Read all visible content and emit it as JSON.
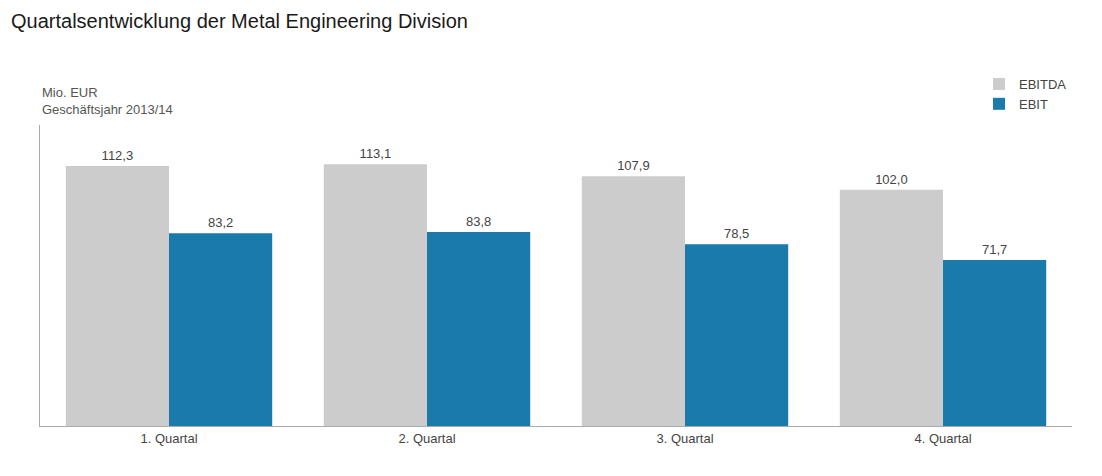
{
  "chart_data": {
    "type": "bar",
    "title": "Quartalsentwicklung der Metal Engineering Division",
    "subtitle": [
      "Mio. EUR",
      "Geschäftsjahr 2013/14"
    ],
    "categories": [
      "1. Quartal",
      "2. Quartal",
      "3. Quartal",
      "4. Quartal"
    ],
    "series": [
      {
        "name": "EBITDA",
        "color": "#cccccc",
        "values": [
          112.3,
          113.1,
          107.9,
          102.0
        ],
        "value_labels": [
          "112,3",
          "113,1",
          "107,9",
          "102,0"
        ]
      },
      {
        "name": "EBIT",
        "color": "#1a7aaa",
        "values": [
          83.2,
          83.8,
          78.5,
          71.7
        ],
        "value_labels": [
          "83,2",
          "83,8",
          "78,5",
          "71,7"
        ]
      }
    ],
    "ylim": [
      0,
      130
    ],
    "grid": false,
    "legend": "top right",
    "data_labels": true,
    "tick_labels": "x"
  }
}
